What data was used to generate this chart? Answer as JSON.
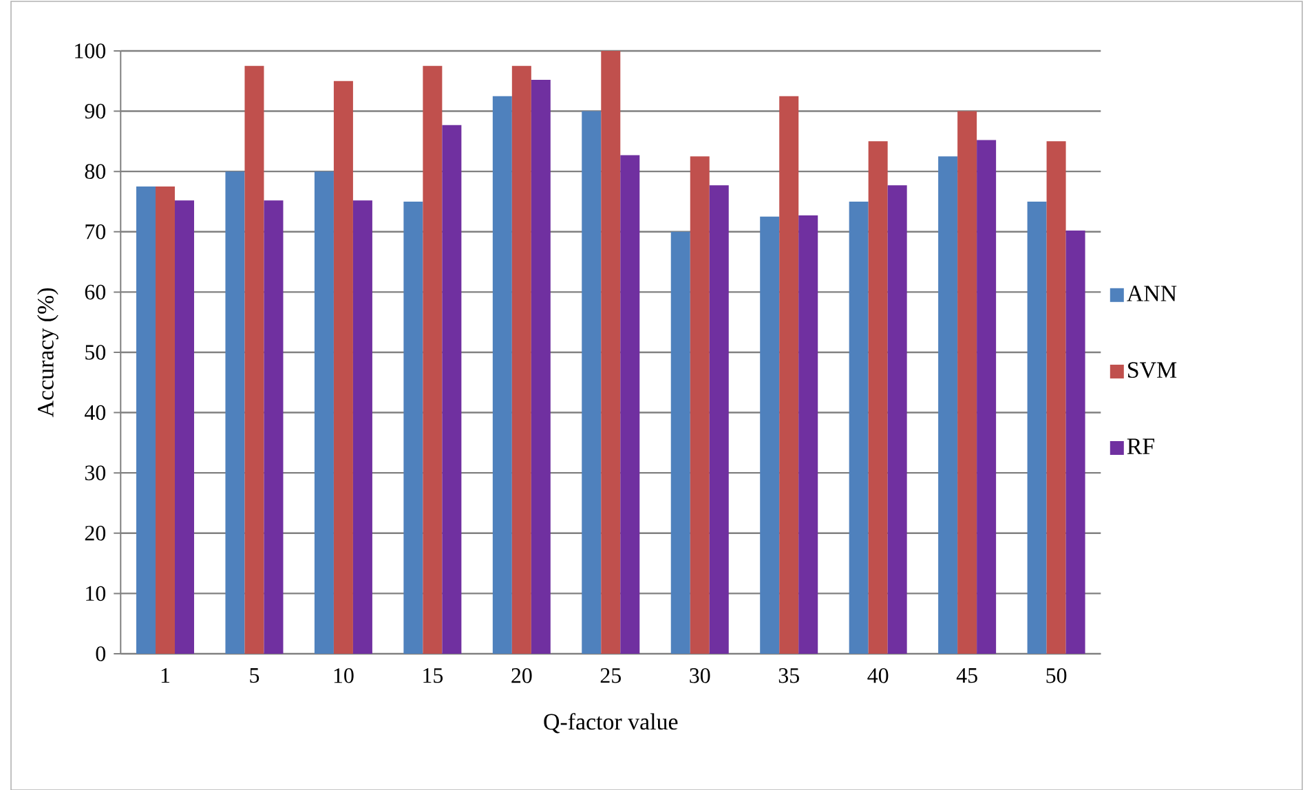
{
  "chart_data": {
    "type": "bar",
    "xlabel": "Q-factor value",
    "ylabel": "Accuracy (%)",
    "categories": [
      "1",
      "5",
      "10",
      "15",
      "20",
      "25",
      "30",
      "35",
      "40",
      "45",
      "50"
    ],
    "series": [
      {
        "name": "ANN",
        "color": "#4f81bd",
        "values": [
          77.5,
          80,
          80,
          75,
          92.5,
          90,
          70,
          72.5,
          75,
          82.5,
          75
        ]
      },
      {
        "name": "SVM",
        "color": "#c0504d",
        "values": [
          77.5,
          97.5,
          95,
          97.5,
          97.5,
          100,
          82.5,
          92.5,
          85,
          90,
          85
        ]
      },
      {
        "name": "RF",
        "color": "#7030a0",
        "values": [
          75.2,
          75.2,
          75.2,
          87.7,
          95.2,
          82.7,
          77.7,
          72.7,
          77.7,
          85.2,
          70.2
        ]
      }
    ],
    "ylim": [
      0,
      100
    ],
    "yticks": [
      0,
      10,
      20,
      30,
      40,
      50,
      60,
      70,
      80,
      90,
      100
    ],
    "grid": "y",
    "legend": "right"
  }
}
